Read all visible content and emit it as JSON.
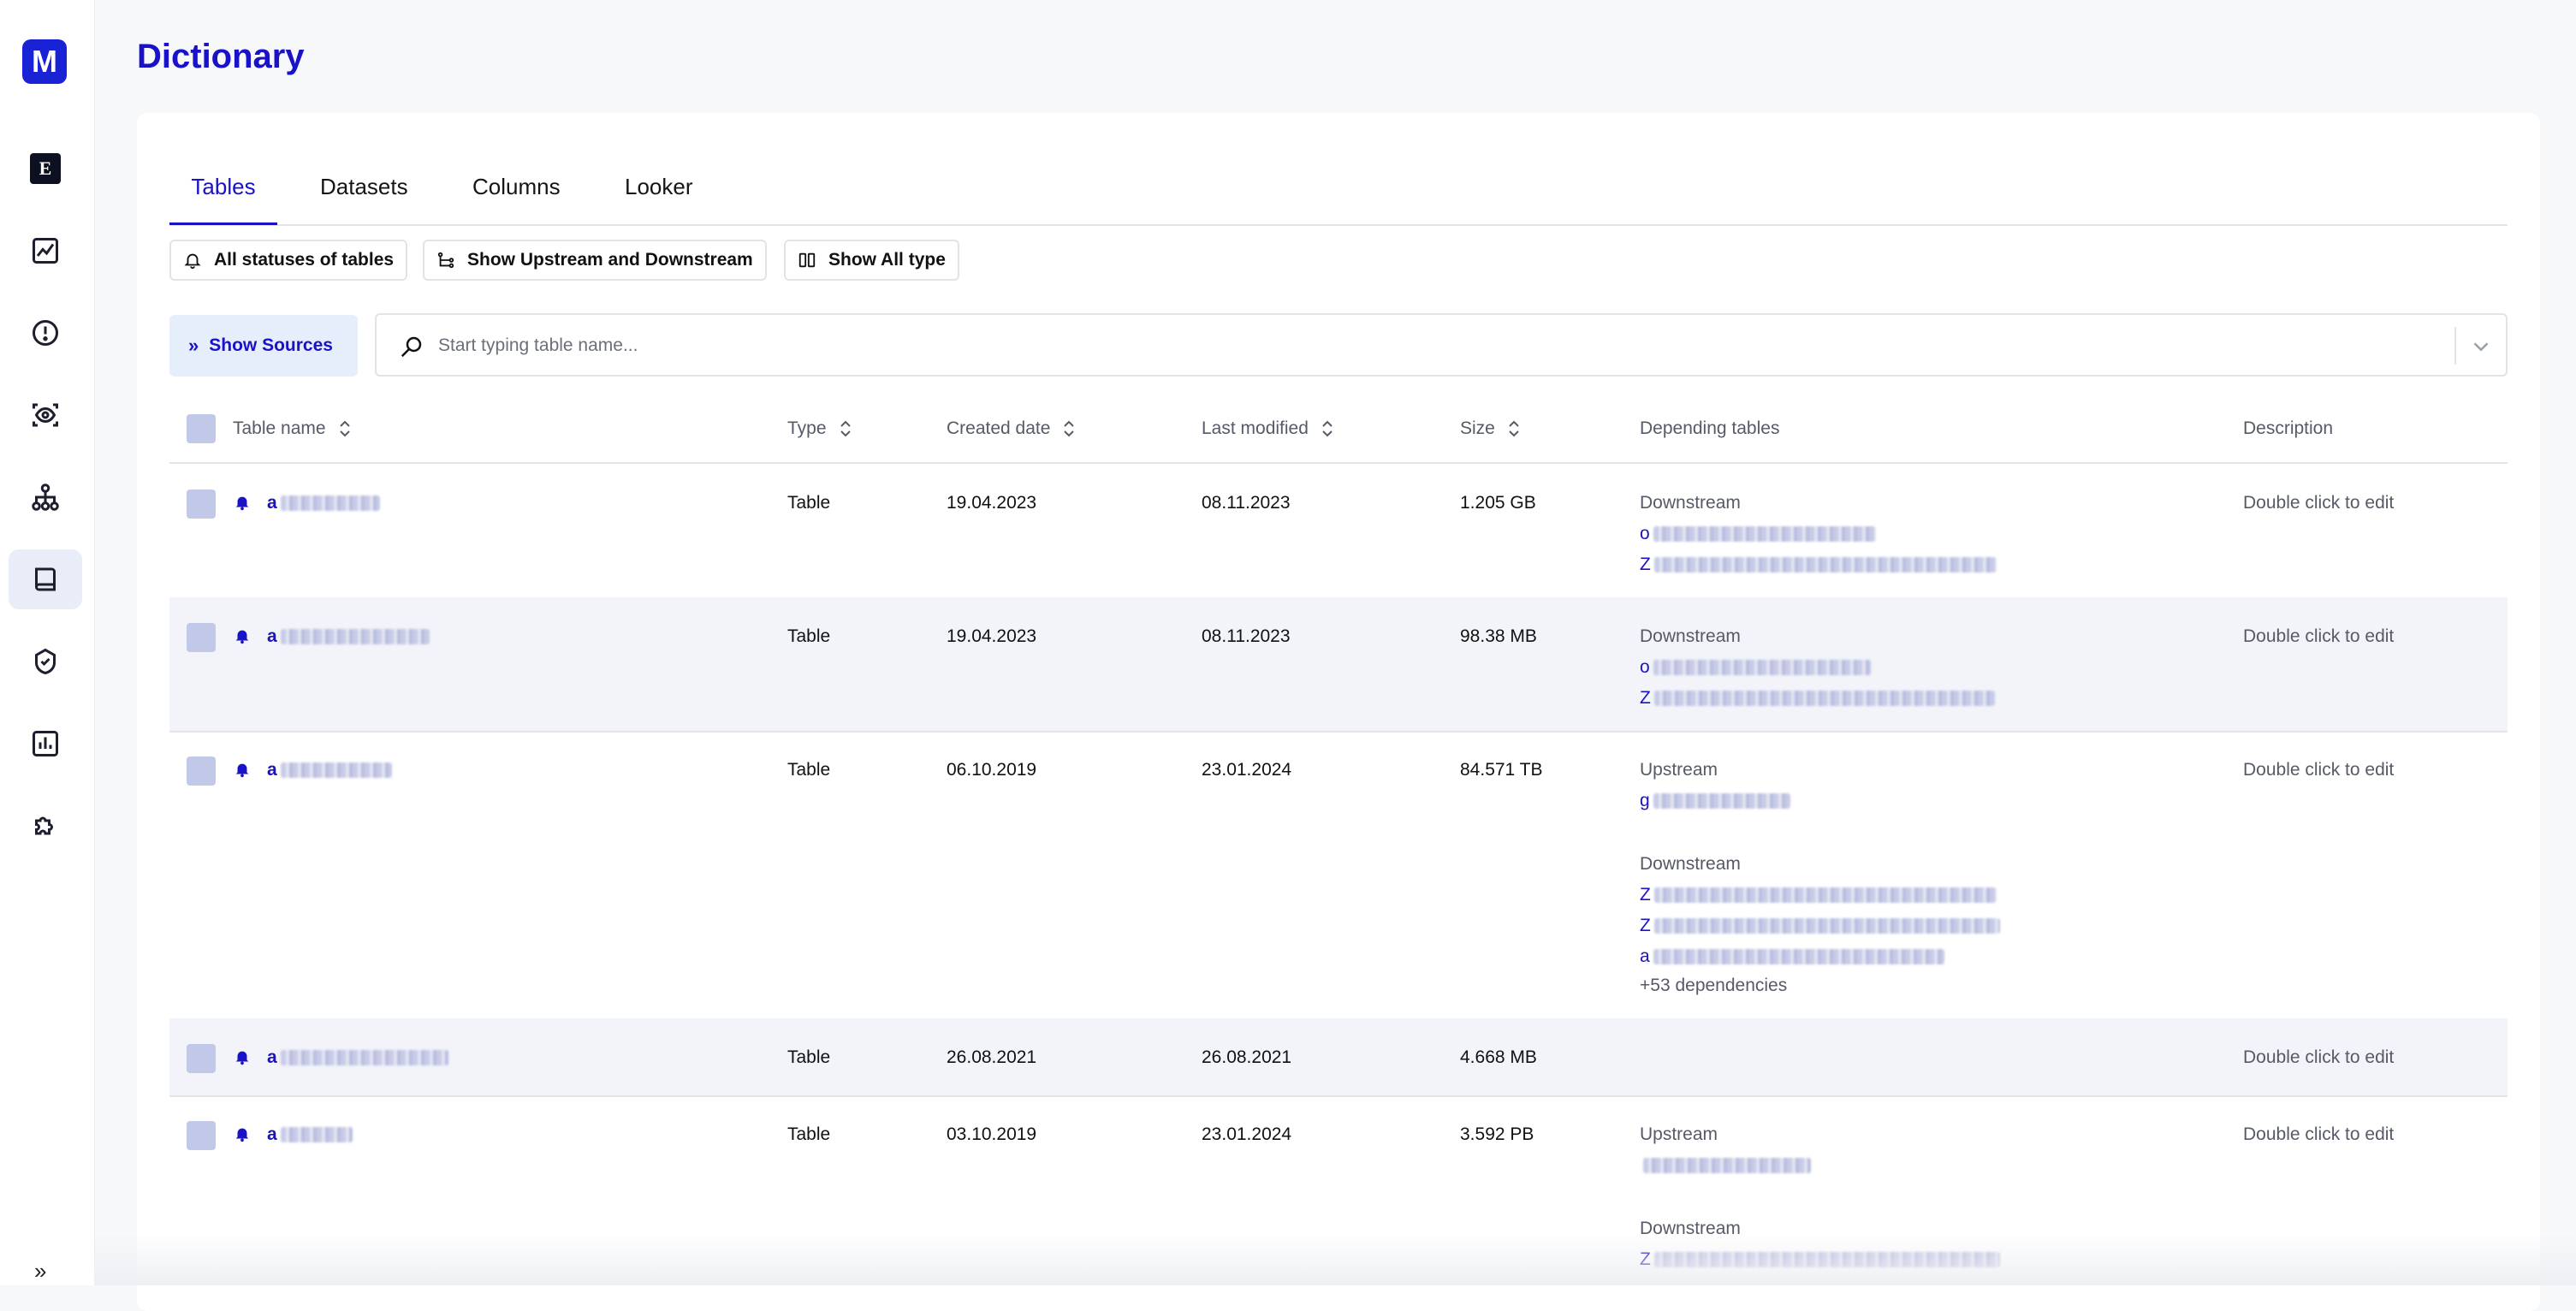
{
  "app": {
    "logo": "M",
    "title": "Dictionary"
  },
  "sidebar": {
    "items": [
      {
        "name": "e-logo-icon",
        "label": "E"
      },
      {
        "name": "line-chart-icon"
      },
      {
        "name": "alert-icon"
      },
      {
        "name": "eye-scan-icon"
      },
      {
        "name": "hierarchy-icon"
      },
      {
        "name": "book-icon",
        "active": true
      },
      {
        "name": "shield-check-icon"
      },
      {
        "name": "bar-chart-icon"
      },
      {
        "name": "puzzle-icon"
      }
    ],
    "expand": "»"
  },
  "tabs": [
    "Tables",
    "Datasets",
    "Columns",
    "Looker"
  ],
  "active_tab": "Tables",
  "filters": {
    "statuses": "All statuses of tables",
    "stream": "Show Upstream and Downstream",
    "type": "Show All type"
  },
  "sources_button": "Show Sources",
  "search": {
    "placeholder": "Start typing table name..."
  },
  "table": {
    "headers": {
      "name": "Table name",
      "type": "Type",
      "created": "Created date",
      "modified": "Last modified",
      "size": "Size",
      "depending": "Depending tables",
      "description": "Description"
    },
    "rows": [
      {
        "name": "a",
        "type": "Table",
        "created": "19.04.2023",
        "modified": "08.11.2023",
        "size": "1.205 GB",
        "downstream_label": "Downstream",
        "downstream": [
          "o",
          "Z"
        ],
        "description": "Double click to edit"
      },
      {
        "name": "a",
        "type": "Table",
        "created": "19.04.2023",
        "modified": "08.11.2023",
        "size": "98.38 MB",
        "downstream_label": "Downstream",
        "downstream": [
          "o",
          "Z"
        ],
        "description": "Double click to edit"
      },
      {
        "name": "a",
        "type": "Table",
        "created": "06.10.2019",
        "modified": "23.01.2024",
        "size": "84.571 TB",
        "upstream_label": "Upstream",
        "upstream": [
          "g"
        ],
        "downstream_label": "Downstream",
        "downstream": [
          "Z",
          "Z",
          "a"
        ],
        "more": "+53 dependencies",
        "description": "Double click to edit"
      },
      {
        "name": "a",
        "type": "Table",
        "created": "26.08.2021",
        "modified": "26.08.2021",
        "size": "4.668 MB",
        "description": "Double click to edit"
      },
      {
        "name": "a",
        "type": "Table",
        "created": "03.10.2019",
        "modified": "23.01.2024",
        "size": "3.592 PB",
        "upstream_label": "Upstream",
        "upstream": [
          ""
        ],
        "downstream_label": "Downstream",
        "downstream": [
          "Z"
        ],
        "description": "Double click to edit"
      }
    ]
  }
}
